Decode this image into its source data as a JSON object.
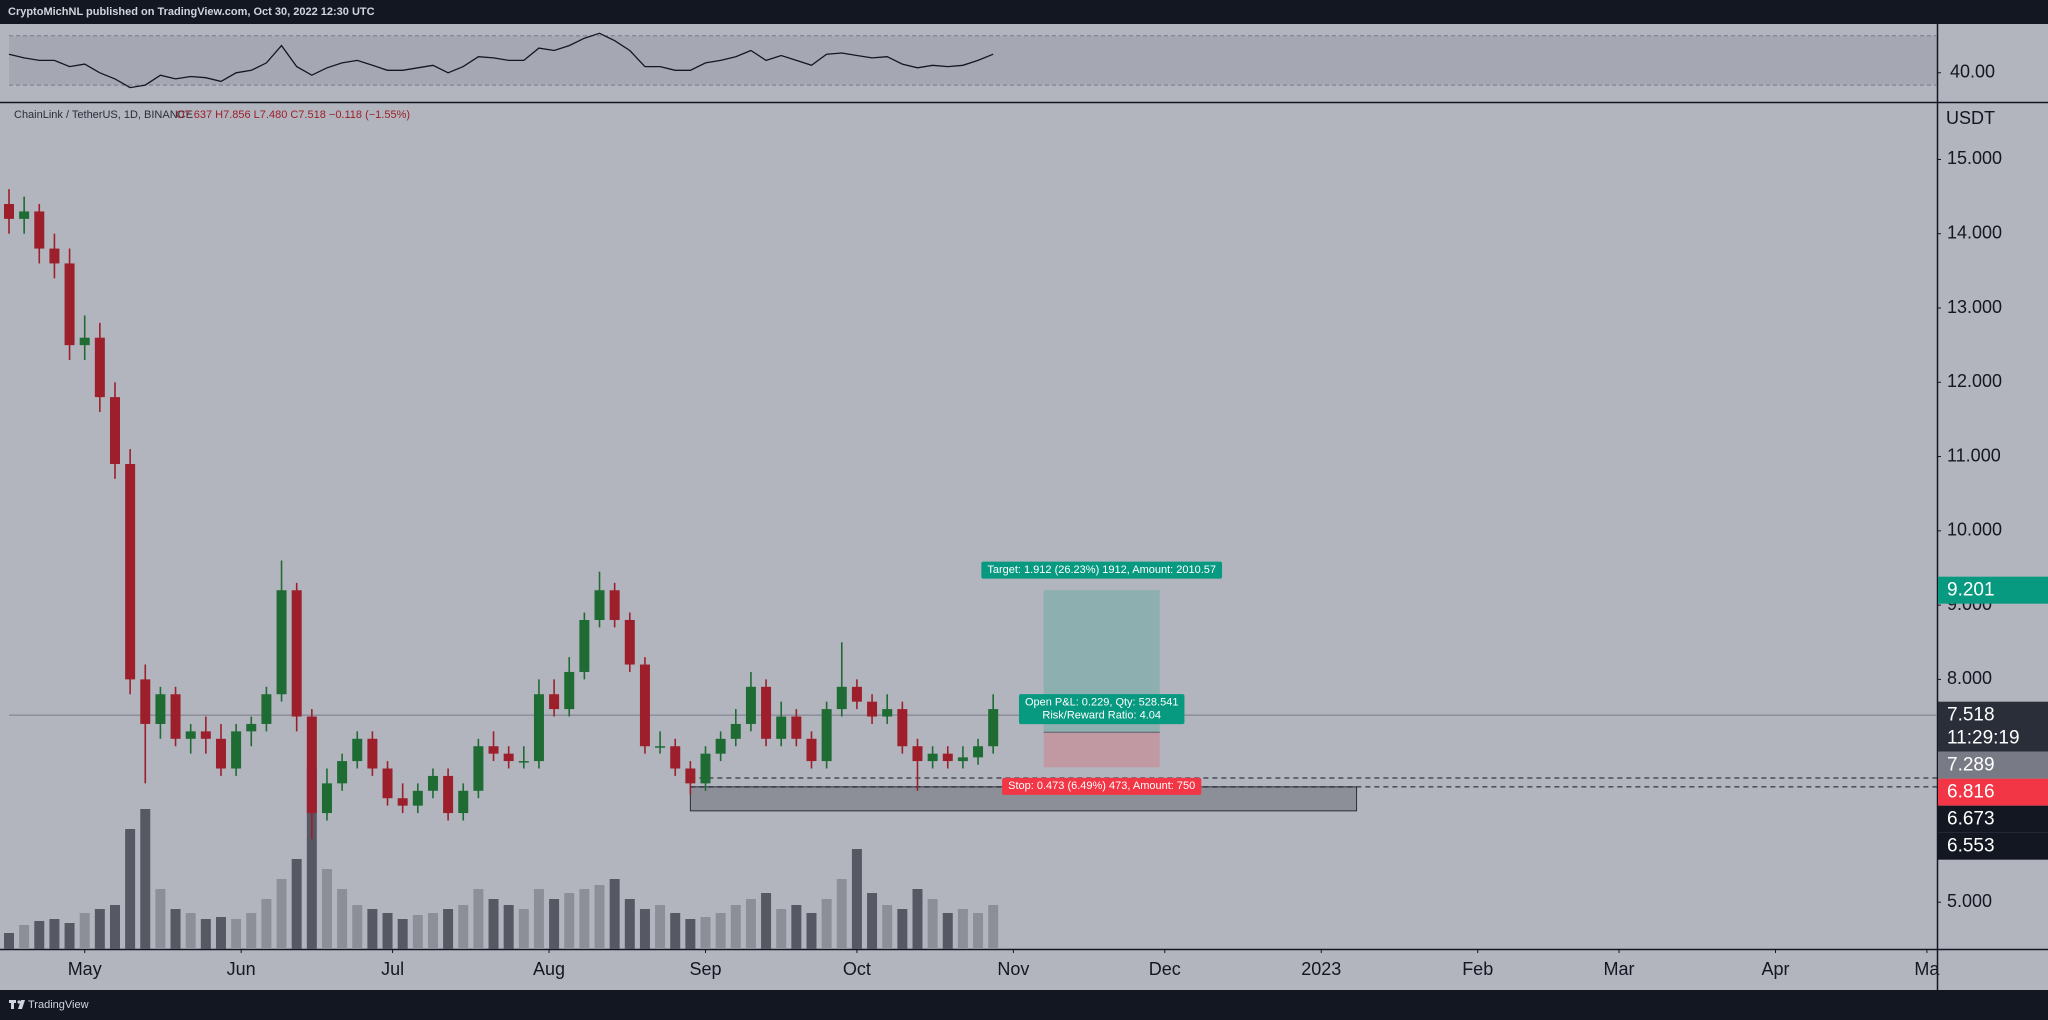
{
  "header": {
    "publisher": "CryptoMichNL published on TradingView.com, Oct 30, 2022 12:30 UTC"
  },
  "chart_data": {
    "type": "candlestick",
    "symbol": "ChainLink / TetherUS, 1D, BINANCE",
    "ohlc_legend": "O7.637 H7.856 L7.480 C7.518 −0.118 (−1.55%)",
    "currency": "USDT",
    "x": [
      "2022-04-16",
      "2022-04-19",
      "2022-04-22",
      "2022-04-25",
      "2022-04-28",
      "2022-05-01",
      "2022-05-04",
      "2022-05-07",
      "2022-05-10",
      "2022-05-13",
      "2022-05-16",
      "2022-05-19",
      "2022-05-22",
      "2022-05-25",
      "2022-05-28",
      "2022-05-31",
      "2022-06-03",
      "2022-06-06",
      "2022-06-09",
      "2022-06-12",
      "2022-06-15",
      "2022-06-18",
      "2022-06-21",
      "2022-06-24",
      "2022-06-27",
      "2022-06-30",
      "2022-07-03",
      "2022-07-06",
      "2022-07-09",
      "2022-07-12",
      "2022-07-15",
      "2022-07-18",
      "2022-07-21",
      "2022-07-24",
      "2022-07-27",
      "2022-07-30",
      "2022-08-02",
      "2022-08-05",
      "2022-08-08",
      "2022-08-11",
      "2022-08-14",
      "2022-08-17",
      "2022-08-20",
      "2022-08-23",
      "2022-08-26",
      "2022-08-29",
      "2022-09-01",
      "2022-09-04",
      "2022-09-07",
      "2022-09-10",
      "2022-09-13",
      "2022-09-16",
      "2022-09-19",
      "2022-09-22",
      "2022-09-25",
      "2022-09-28",
      "2022-10-01",
      "2022-10-04",
      "2022-10-07",
      "2022-10-10",
      "2022-10-13",
      "2022-10-16",
      "2022-10-19",
      "2022-10-22",
      "2022-10-25",
      "2022-10-28"
    ],
    "open": [
      14.4,
      14.2,
      14.3,
      13.8,
      13.6,
      12.5,
      12.6,
      11.8,
      10.9,
      8.0,
      7.4,
      7.8,
      7.2,
      7.3,
      7.2,
      6.8,
      7.3,
      7.4,
      7.8,
      9.2,
      7.5,
      6.2,
      6.6,
      6.9,
      7.2,
      6.8,
      6.4,
      6.3,
      6.5,
      6.7,
      6.2,
      6.5,
      7.1,
      7.0,
      6.9,
      6.9,
      7.8,
      7.6,
      8.1,
      8.8,
      9.2,
      8.8,
      8.2,
      7.1,
      7.1,
      6.8,
      6.6,
      7.0,
      7.2,
      7.4,
      7.9,
      7.2,
      7.5,
      7.2,
      6.9,
      7.6,
      7.9,
      7.7,
      7.5,
      7.6,
      7.1,
      6.9,
      7.0,
      6.9,
      6.95,
      7.1
    ],
    "high": [
      14.6,
      14.5,
      14.4,
      14.0,
      13.8,
      12.9,
      12.8,
      12.0,
      11.1,
      8.2,
      7.9,
      7.9,
      7.4,
      7.5,
      7.4,
      7.4,
      7.5,
      7.9,
      9.6,
      9.3,
      7.6,
      6.8,
      7.0,
      7.3,
      7.3,
      6.9,
      6.6,
      6.6,
      6.8,
      6.8,
      6.6,
      7.2,
      7.3,
      7.1,
      7.1,
      8.0,
      8.0,
      8.3,
      8.9,
      9.45,
      9.3,
      8.9,
      8.3,
      7.3,
      7.2,
      6.9,
      7.1,
      7.3,
      7.6,
      8.1,
      8.0,
      7.7,
      7.6,
      7.3,
      7.7,
      8.5,
      8.0,
      7.8,
      7.8,
      7.7,
      7.2,
      7.1,
      7.1,
      7.1,
      7.2,
      7.8
    ],
    "low": [
      14.0,
      14.0,
      13.6,
      13.4,
      12.3,
      12.3,
      11.6,
      10.7,
      7.8,
      6.6,
      7.2,
      7.1,
      7.0,
      7.0,
      6.7,
      6.7,
      7.1,
      7.3,
      7.7,
      7.3,
      5.85,
      6.1,
      6.5,
      6.8,
      6.7,
      6.3,
      6.2,
      6.2,
      6.4,
      6.1,
      6.1,
      6.4,
      6.9,
      6.8,
      6.8,
      6.8,
      7.5,
      7.5,
      8.0,
      8.7,
      8.7,
      8.1,
      7.0,
      7.0,
      6.7,
      6.45,
      6.5,
      6.9,
      7.1,
      7.3,
      7.1,
      7.1,
      7.1,
      6.8,
      6.8,
      7.5,
      7.6,
      7.4,
      7.4,
      7.0,
      6.5,
      6.8,
      6.8,
      6.8,
      6.85,
      7.0
    ],
    "close": [
      14.2,
      14.3,
      13.8,
      13.6,
      12.5,
      12.6,
      11.8,
      10.9,
      8.0,
      7.4,
      7.8,
      7.2,
      7.3,
      7.2,
      6.8,
      7.3,
      7.4,
      7.8,
      9.2,
      7.5,
      6.2,
      6.6,
      6.9,
      7.2,
      6.8,
      6.4,
      6.3,
      6.5,
      6.7,
      6.2,
      6.5,
      7.1,
      7.0,
      6.9,
      6.9,
      7.8,
      7.6,
      8.1,
      8.8,
      9.2,
      8.8,
      8.2,
      7.1,
      7.1,
      6.8,
      6.6,
      7.0,
      7.2,
      7.4,
      7.9,
      7.2,
      7.5,
      7.2,
      6.9,
      7.6,
      7.9,
      7.7,
      7.5,
      7.6,
      7.1,
      6.9,
      7.0,
      6.9,
      6.95,
      7.1,
      7.6
    ],
    "volume": [
      8,
      12,
      14,
      15,
      13,
      18,
      20,
      22,
      60,
      70,
      30,
      20,
      18,
      15,
      16,
      15,
      18,
      25,
      35,
      45,
      90,
      40,
      30,
      22,
      20,
      18,
      15,
      17,
      18,
      20,
      22,
      30,
      25,
      22,
      20,
      30,
      25,
      28,
      30,
      32,
      35,
      25,
      20,
      22,
      18,
      15,
      16,
      18,
      22,
      25,
      28,
      20,
      22,
      18,
      25,
      35,
      50,
      28,
      22,
      20,
      30,
      25,
      18,
      20,
      18,
      22
    ],
    "volume_lim": [
      0,
      100
    ],
    "up_color": "#1e6b34",
    "down_color": "#9c1f2b",
    "volume_up_color": "#8c8f98",
    "volume_down_color": "#565963",
    "xlim": [
      "2022-04-16",
      "2023-05-03"
    ],
    "xticks": [
      {
        "value": "2022-05-01",
        "label": "May"
      },
      {
        "value": "2022-06-01",
        "label": "Jun"
      },
      {
        "value": "2022-07-01",
        "label": "Jul"
      },
      {
        "value": "2022-08-01",
        "label": "Aug"
      },
      {
        "value": "2022-09-01",
        "label": "Sep"
      },
      {
        "value": "2022-10-01",
        "label": "Oct"
      },
      {
        "value": "2022-11-01",
        "label": "Nov"
      },
      {
        "value": "2022-12-01",
        "label": "Dec"
      },
      {
        "value": "2023-01-01",
        "label": "2023"
      },
      {
        "value": "2023-02-01",
        "label": "Feb"
      },
      {
        "value": "2023-03-01",
        "label": "Mar"
      },
      {
        "value": "2023-04-01",
        "label": "Apr"
      },
      {
        "value": "2023-05-01",
        "label": "Ma"
      }
    ],
    "ylim": [
      4.37,
      15.76
    ],
    "yticks": [
      {
        "value": 5,
        "label": "5.000"
      },
      {
        "value": 8,
        "label": "8.000"
      },
      {
        "value": 9,
        "label": "9.000"
      },
      {
        "value": 10,
        "label": "10.000"
      },
      {
        "value": 11,
        "label": "11.000"
      },
      {
        "value": 12,
        "label": "12.000"
      },
      {
        "value": 13,
        "label": "13.000"
      },
      {
        "value": 14,
        "label": "14.000"
      },
      {
        "value": 15,
        "label": "15.000"
      }
    ],
    "rsi": {
      "values": [
        55,
        52,
        50,
        50,
        45,
        47,
        40,
        35,
        28,
        30,
        38,
        35,
        37,
        36,
        33,
        40,
        42,
        48,
        62,
        45,
        38,
        44,
        48,
        50,
        46,
        42,
        42,
        44,
        46,
        40,
        45,
        53,
        52,
        50,
        50,
        60,
        58,
        62,
        68,
        72,
        66,
        58,
        45,
        45,
        42,
        42,
        48,
        50,
        53,
        58,
        50,
        54,
        50,
        46,
        55,
        56,
        54,
        52,
        53,
        47,
        44,
        46,
        45,
        46,
        50,
        55
      ],
      "ylim": [
        16.3,
        79.5
      ],
      "band": [
        30,
        70
      ],
      "yticks": [
        {
          "value": 40,
          "label": "40.00"
        }
      ],
      "color": "#131722"
    },
    "last_price": {
      "value": 7.518,
      "countdown": "11:29:19",
      "color": "#2a2e39"
    },
    "position": {
      "from": "2022-11-07",
      "to": "2022-11-30",
      "entry": 7.289,
      "target": 9.201,
      "stop": 6.816,
      "target_label": "Target: 1.912 (26.23%) 1912, Amount: 2010.57",
      "pnl_label": "Open P&L: 0.229, Qty: 528.541",
      "ratio_label": "Risk/Reward Ratio: 4.04",
      "stop_label": "Stop: 0.473 (6.49%) 473, Amount: 750",
      "entry_color": "#787b86",
      "target_color": "#089981",
      "stop_color": "#f23645"
    },
    "levels": [
      6.673,
      6.553
    ],
    "level_color": "#131722",
    "zone": {
      "from": "2022-08-29",
      "to": "2023-01-08",
      "high": 6.553,
      "low": 6.23
    }
  },
  "footer": {
    "brand": "TradingView"
  }
}
